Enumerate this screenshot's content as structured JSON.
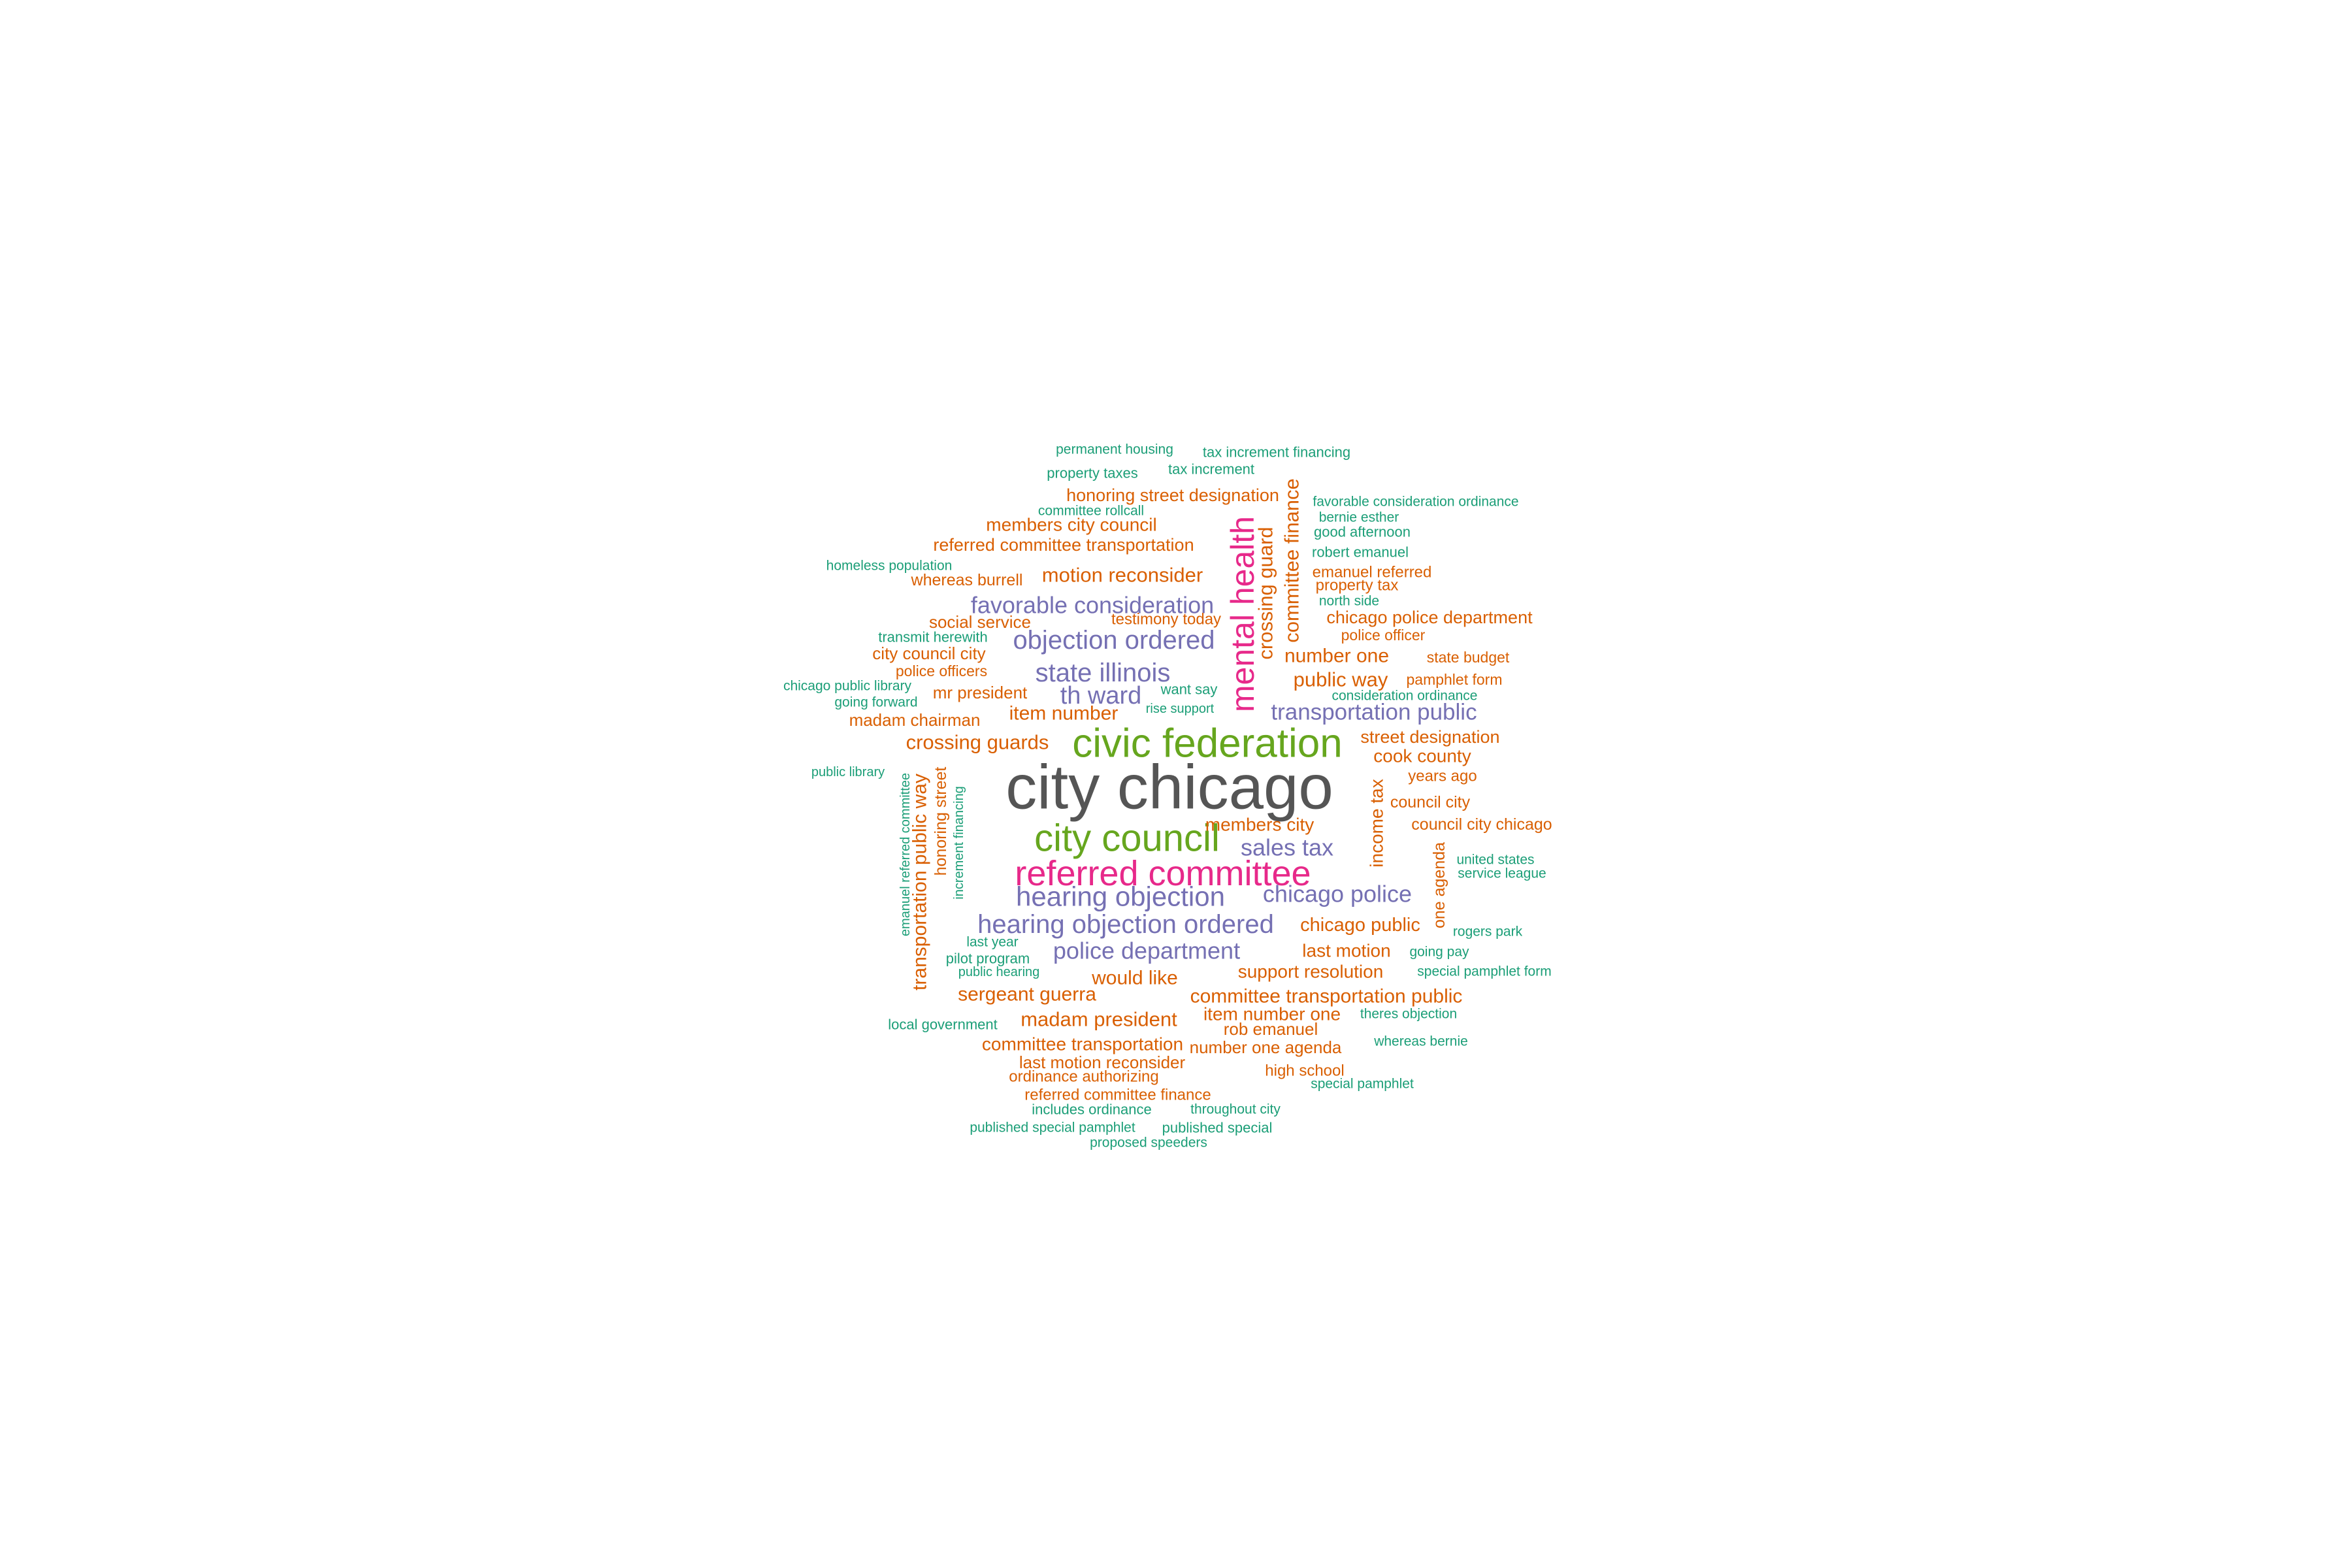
{
  "palette": {
    "teal": "#1b9e77",
    "orange": "#d95f02",
    "purple": "#7570b3",
    "magenta": "#e7298a",
    "green": "#66a61e",
    "gray": "#555555"
  },
  "words": [
    {
      "text": "city chicago",
      "weight": 100,
      "color": "gray"
    },
    {
      "text": "civic federation",
      "weight": 60,
      "color": "green"
    },
    {
      "text": "city council",
      "weight": 55,
      "color": "green"
    },
    {
      "text": "referred committee",
      "weight": 52,
      "color": "magenta"
    },
    {
      "text": "mental health",
      "weight": 50,
      "color": "magenta"
    },
    {
      "text": "hearing objection",
      "weight": 40,
      "color": "purple"
    },
    {
      "text": "hearing objection ordered",
      "weight": 38,
      "color": "purple"
    },
    {
      "text": "objection ordered",
      "weight": 37,
      "color": "purple"
    },
    {
      "text": "state illinois",
      "weight": 36,
      "color": "purple"
    },
    {
      "text": "favorable consideration",
      "weight": 35,
      "color": "purple"
    },
    {
      "text": "th ward",
      "weight": 35,
      "color": "purple"
    },
    {
      "text": "police department",
      "weight": 34,
      "color": "purple"
    },
    {
      "text": "chicago police",
      "weight": 34,
      "color": "purple"
    },
    {
      "text": "sales tax",
      "weight": 34,
      "color": "purple"
    },
    {
      "text": "transportation public",
      "weight": 33,
      "color": "purple"
    },
    {
      "text": "crossing guard",
      "weight": 30,
      "color": "orange"
    },
    {
      "text": "committee finance",
      "weight": 30,
      "color": "orange"
    },
    {
      "text": "transportation public way",
      "weight": 30,
      "color": "orange"
    },
    {
      "text": "motion reconsider",
      "weight": 29,
      "color": "orange"
    },
    {
      "text": "crossing guards",
      "weight": 29,
      "color": "orange"
    },
    {
      "text": "madam president",
      "weight": 29,
      "color": "orange"
    },
    {
      "text": "public way",
      "weight": 29,
      "color": "orange"
    },
    {
      "text": "committee transportation public",
      "weight": 28,
      "color": "orange"
    },
    {
      "text": "sergeant guerra",
      "weight": 28,
      "color": "orange"
    },
    {
      "text": "would like",
      "weight": 28,
      "color": "orange"
    },
    {
      "text": "item number",
      "weight": 28,
      "color": "orange"
    },
    {
      "text": "number one",
      "weight": 28,
      "color": "orange"
    },
    {
      "text": "members city",
      "weight": 27,
      "color": "orange"
    },
    {
      "text": "chicago public",
      "weight": 27,
      "color": "orange"
    },
    {
      "text": "last motion",
      "weight": 27,
      "color": "orange"
    },
    {
      "text": "support resolution",
      "weight": 27,
      "color": "orange"
    },
    {
      "text": "item number one",
      "weight": 27,
      "color": "orange"
    },
    {
      "text": "committee transportation",
      "weight": 27,
      "color": "orange"
    },
    {
      "text": "members city council",
      "weight": 27,
      "color": "orange"
    },
    {
      "text": "income tax",
      "weight": 27,
      "color": "orange"
    },
    {
      "text": "cook county",
      "weight": 26,
      "color": "orange"
    },
    {
      "text": "street designation",
      "weight": 26,
      "color": "orange"
    },
    {
      "text": "chicago police department",
      "weight": 26,
      "color": "orange"
    },
    {
      "text": "referred committee transportation",
      "weight": 26,
      "color": "orange"
    },
    {
      "text": "honoring street designation",
      "weight": 26,
      "color": "orange"
    },
    {
      "text": "social service",
      "weight": 25,
      "color": "orange"
    },
    {
      "text": "mr president",
      "weight": 25,
      "color": "orange"
    },
    {
      "text": "madam chairman",
      "weight": 25,
      "color": "orange"
    },
    {
      "text": "city council city",
      "weight": 25,
      "color": "orange"
    },
    {
      "text": "rob emanuel",
      "weight": 25,
      "color": "orange"
    },
    {
      "text": "number one agenda",
      "weight": 25,
      "color": "orange"
    },
    {
      "text": "last motion reconsider",
      "weight": 25,
      "color": "orange"
    },
    {
      "text": "council city chicago",
      "weight": 24,
      "color": "orange"
    },
    {
      "text": "council city",
      "weight": 24,
      "color": "orange"
    },
    {
      "text": "one agenda",
      "weight": 24,
      "color": "orange"
    },
    {
      "text": "whereas burrell",
      "weight": 24,
      "color": "orange"
    },
    {
      "text": "honoring street",
      "weight": 24,
      "color": "orange"
    },
    {
      "text": "referred committee finance",
      "weight": 23,
      "color": "orange"
    },
    {
      "text": "ordinance authorizing",
      "weight": 23,
      "color": "orange"
    },
    {
      "text": "high school",
      "weight": 23,
      "color": "orange"
    },
    {
      "text": "years ago",
      "weight": 23,
      "color": "orange"
    },
    {
      "text": "testimony today",
      "weight": 23,
      "color": "orange"
    },
    {
      "text": "emanuel referred",
      "weight": 23,
      "color": "orange"
    },
    {
      "text": "property tax",
      "weight": 23,
      "color": "orange"
    },
    {
      "text": "police officer",
      "weight": 22,
      "color": "orange"
    },
    {
      "text": "state budget",
      "weight": 22,
      "color": "orange"
    },
    {
      "text": "pamphlet form",
      "weight": 22,
      "color": "orange"
    },
    {
      "text": "police officers",
      "weight": 22,
      "color": "orange"
    },
    {
      "text": "permanent housing",
      "weight": 20,
      "color": "teal"
    },
    {
      "text": "tax increment financing",
      "weight": 21,
      "color": "teal"
    },
    {
      "text": "property taxes",
      "weight": 21,
      "color": "teal"
    },
    {
      "text": "tax increment",
      "weight": 21,
      "color": "teal"
    },
    {
      "text": "committee rollcall",
      "weight": 20,
      "color": "teal"
    },
    {
      "text": "favorable consideration ordinance",
      "weight": 20,
      "color": "teal"
    },
    {
      "text": "bernie esther",
      "weight": 20,
      "color": "teal"
    },
    {
      "text": "good afternoon",
      "weight": 21,
      "color": "teal"
    },
    {
      "text": "robert emanuel",
      "weight": 21,
      "color": "teal"
    },
    {
      "text": "homeless population",
      "weight": 20,
      "color": "teal"
    },
    {
      "text": "north side",
      "weight": 20,
      "color": "teal"
    },
    {
      "text": "transmit herewith",
      "weight": 21,
      "color": "teal"
    },
    {
      "text": "chicago public library",
      "weight": 20,
      "color": "teal"
    },
    {
      "text": "going forward",
      "weight": 20,
      "color": "teal"
    },
    {
      "text": "want say",
      "weight": 21,
      "color": "teal"
    },
    {
      "text": "rise support",
      "weight": 19,
      "color": "teal"
    },
    {
      "text": "consideration ordinance",
      "weight": 20,
      "color": "teal"
    },
    {
      "text": "public library",
      "weight": 19,
      "color": "teal"
    },
    {
      "text": "emanuel referred committee",
      "weight": 19,
      "color": "teal"
    },
    {
      "text": "increment financing",
      "weight": 19,
      "color": "teal"
    },
    {
      "text": "united states",
      "weight": 20,
      "color": "teal"
    },
    {
      "text": "service league",
      "weight": 20,
      "color": "teal"
    },
    {
      "text": "rogers park",
      "weight": 20,
      "color": "teal"
    },
    {
      "text": "last year",
      "weight": 20,
      "color": "teal"
    },
    {
      "text": "pilot program",
      "weight": 21,
      "color": "teal"
    },
    {
      "text": "public hearing",
      "weight": 19,
      "color": "teal"
    },
    {
      "text": "going pay",
      "weight": 20,
      "color": "teal"
    },
    {
      "text": "special pamphlet form",
      "weight": 20,
      "color": "teal"
    },
    {
      "text": "local government",
      "weight": 21,
      "color": "teal"
    },
    {
      "text": "theres objection",
      "weight": 20,
      "color": "teal"
    },
    {
      "text": "whereas bernie",
      "weight": 20,
      "color": "teal"
    },
    {
      "text": "special pamphlet",
      "weight": 20,
      "color": "teal"
    },
    {
      "text": "includes ordinance",
      "weight": 21,
      "color": "teal"
    },
    {
      "text": "throughout city",
      "weight": 20,
      "color": "teal"
    },
    {
      "text": "published special pamphlet",
      "weight": 20,
      "color": "teal"
    },
    {
      "text": "published special",
      "weight": 21,
      "color": "teal"
    },
    {
      "text": "proposed speeders",
      "weight": 20,
      "color": "teal"
    }
  ]
}
